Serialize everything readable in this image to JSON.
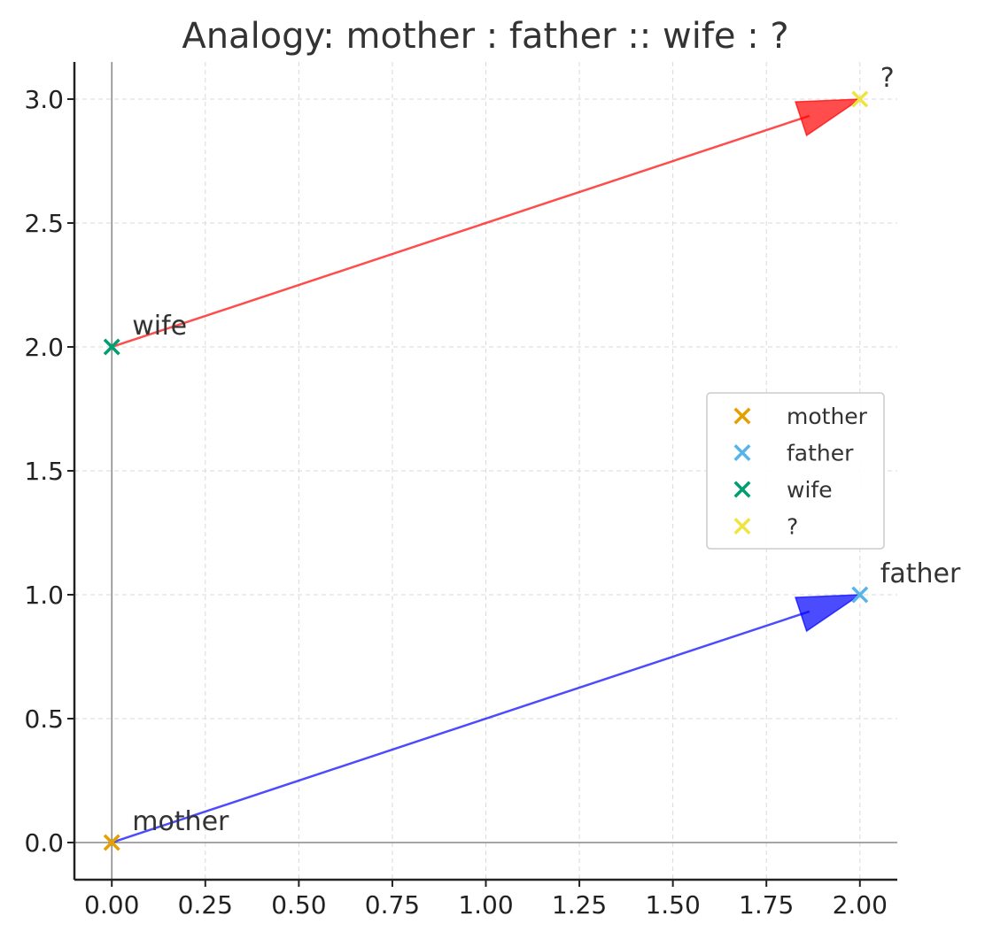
{
  "chart_data": {
    "type": "scatter",
    "title": "Analogy: mother : father :: wife : ?",
    "xlabel": "",
    "ylabel": "",
    "xlim": [
      -0.1,
      2.1
    ],
    "ylim": [
      -0.15,
      3.15
    ],
    "x_ticks": [
      0.0,
      0.25,
      0.5,
      0.75,
      1.0,
      1.25,
      1.5,
      1.75,
      2.0
    ],
    "x_tick_labels": [
      "0.00",
      "0.25",
      "0.50",
      "0.75",
      "1.00",
      "1.25",
      "1.50",
      "1.75",
      "2.00"
    ],
    "y_ticks": [
      0.0,
      0.5,
      1.0,
      1.5,
      2.0,
      2.5,
      3.0
    ],
    "y_tick_labels": [
      "0.0",
      "0.5",
      "1.0",
      "1.5",
      "2.0",
      "2.5",
      "3.0"
    ],
    "grid": true,
    "points": [
      {
        "name": "mother",
        "label": "mother",
        "x": 0,
        "y": 0,
        "color": "#E69F00"
      },
      {
        "name": "father",
        "label": "father",
        "x": 2,
        "y": 1,
        "color": "#56B4E9"
      },
      {
        "name": "wife",
        "label": "wife",
        "x": 0,
        "y": 2,
        "color": "#009E73"
      },
      {
        "name": "?",
        "label": "?",
        "x": 2,
        "y": 3,
        "color": "#F0E442"
      }
    ],
    "arrows": [
      {
        "from": [
          0,
          0
        ],
        "to": [
          2,
          1
        ],
        "color": "#0000FF"
      },
      {
        "from": [
          0,
          2
        ],
        "to": [
          2,
          3
        ],
        "color": "#FF0000"
      }
    ],
    "reference_lines": {
      "x": 0,
      "y": 0
    },
    "legend": {
      "position": "right",
      "entries": [
        "mother",
        "father",
        "wife",
        "?"
      ]
    }
  }
}
